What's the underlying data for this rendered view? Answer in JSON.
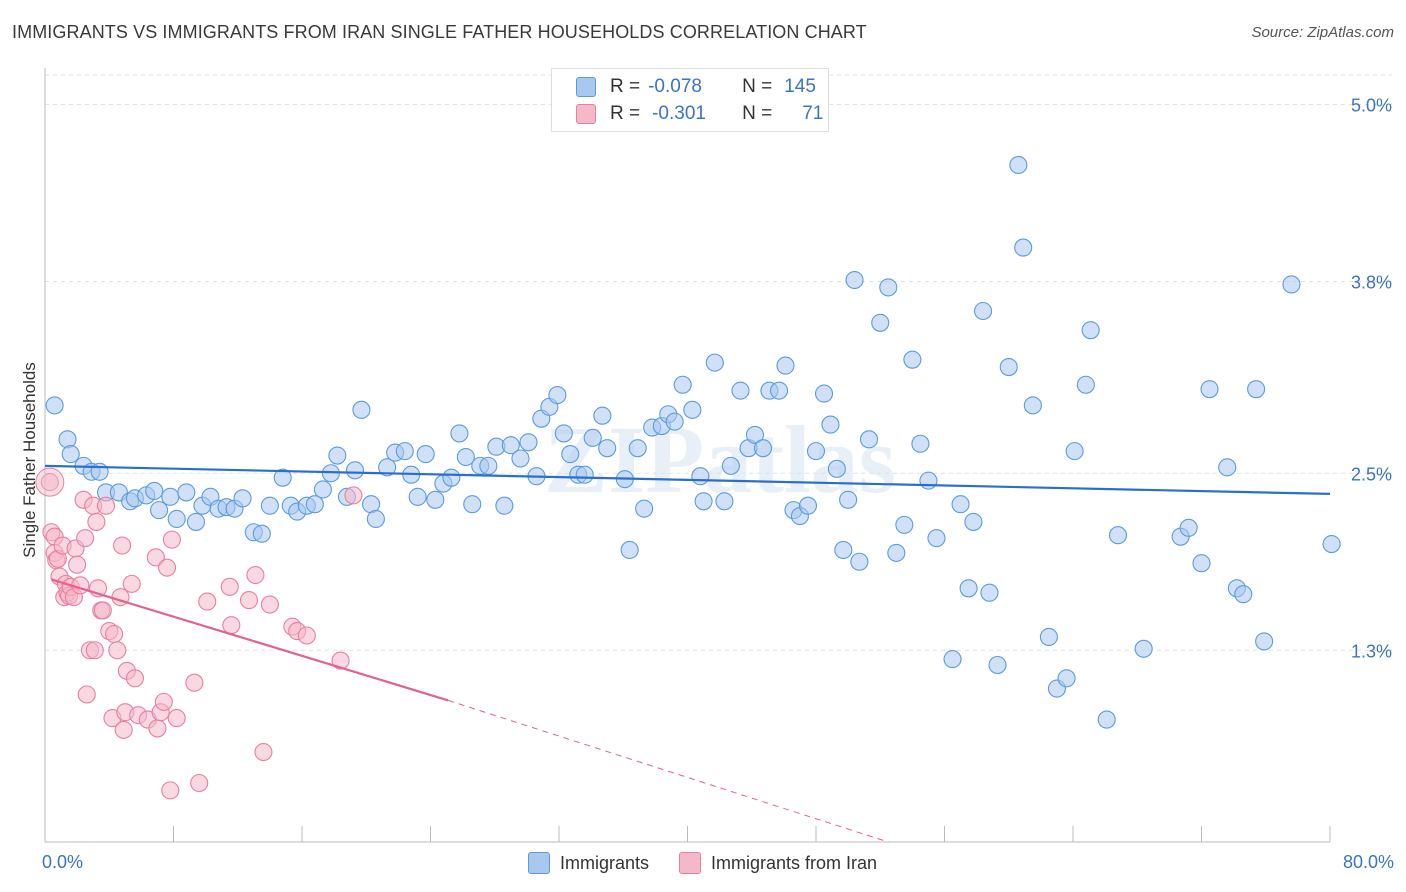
{
  "title": "IMMIGRANTS VS IMMIGRANTS FROM IRAN SINGLE FATHER HOUSEHOLDS CORRELATION CHART",
  "source": "Source: ZipAtlas.com",
  "watermark": "ZIPatlas",
  "legend": {
    "rows": [
      {
        "r_label": "R =",
        "r_value": "-0.078",
        "n_label": "N =",
        "n_value": "145",
        "color": "#a9c8f0"
      },
      {
        "r_label": "R =",
        "r_value": "-0.301",
        "n_label": "N =",
        "n_value": "71",
        "color": "#f5b8c9"
      }
    ]
  },
  "bottom_legend": [
    {
      "label": "Immigrants",
      "color": "#a9c8f0"
    },
    {
      "label": "Immigrants from Iran",
      "color": "#f5b8c9"
    }
  ],
  "chart_data": {
    "type": "scatter",
    "title": "IMMIGRANTS VS IMMIGRANTS FROM IRAN SINGLE FATHER HOUSEHOLDS CORRELATION CHART",
    "xlabel": "",
    "ylabel": "Single Father Households",
    "xlim": [
      0,
      80
    ],
    "ylim": [
      0,
      5.2
    ],
    "x_tick_labels": [
      "0.0%",
      "80.0%"
    ],
    "y_ticks": [
      1.3,
      2.5,
      3.8,
      5.0
    ],
    "y_tick_labels": [
      "1.3%",
      "2.5%",
      "3.8%",
      "5.0%"
    ],
    "grid": true,
    "series": [
      {
        "name": "Immigrants",
        "color": "#5b9be0",
        "fill": "#a9c8f0",
        "trend": {
          "x0": 0,
          "y0": 2.55,
          "x1": 80,
          "y1": 2.36,
          "color": "#2a6fcf"
        },
        "points": [
          [
            0.6,
            2.96
          ],
          [
            1.4,
            2.73
          ],
          [
            1.6,
            2.63
          ],
          [
            2.4,
            2.55
          ],
          [
            2.9,
            2.51
          ],
          [
            3.4,
            2.51
          ],
          [
            3.8,
            2.37
          ],
          [
            4.6,
            2.37
          ],
          [
            5.3,
            2.31
          ],
          [
            5.6,
            2.33
          ],
          [
            6.3,
            2.35
          ],
          [
            6.8,
            2.38
          ],
          [
            7.1,
            2.25
          ],
          [
            7.8,
            2.34
          ],
          [
            8.2,
            2.19
          ],
          [
            8.8,
            2.37
          ],
          [
            9.4,
            2.17
          ],
          [
            9.8,
            2.28
          ],
          [
            10.3,
            2.34
          ],
          [
            10.8,
            2.26
          ],
          [
            11.3,
            2.27
          ],
          [
            11.8,
            2.26
          ],
          [
            12.3,
            2.33
          ],
          [
            13.0,
            2.1
          ],
          [
            13.5,
            2.09
          ],
          [
            14.0,
            2.28
          ],
          [
            14.8,
            2.47
          ],
          [
            15.3,
            2.28
          ],
          [
            15.7,
            2.24
          ],
          [
            16.3,
            2.28
          ],
          [
            16.8,
            2.29
          ],
          [
            17.3,
            2.39
          ],
          [
            17.8,
            2.5
          ],
          [
            18.2,
            2.62
          ],
          [
            18.8,
            2.34
          ],
          [
            19.3,
            2.52
          ],
          [
            19.7,
            2.93
          ],
          [
            20.3,
            2.29
          ],
          [
            20.6,
            2.19
          ],
          [
            21.3,
            2.54
          ],
          [
            21.8,
            2.64
          ],
          [
            22.4,
            2.65
          ],
          [
            22.8,
            2.49
          ],
          [
            23.2,
            2.34
          ],
          [
            23.7,
            2.63
          ],
          [
            24.3,
            2.32
          ],
          [
            24.8,
            2.43
          ],
          [
            25.3,
            2.47
          ],
          [
            25.8,
            2.77
          ],
          [
            26.2,
            2.61
          ],
          [
            26.6,
            2.29
          ],
          [
            27.1,
            2.55
          ],
          [
            27.6,
            2.55
          ],
          [
            28.1,
            2.68
          ],
          [
            28.6,
            2.28
          ],
          [
            29.0,
            2.69
          ],
          [
            29.6,
            2.6
          ],
          [
            30.1,
            2.71
          ],
          [
            30.6,
            2.48
          ],
          [
            30.9,
            2.87
          ],
          [
            31.4,
            2.95
          ],
          [
            31.9,
            3.03
          ],
          [
            32.3,
            2.77
          ],
          [
            32.7,
            2.63
          ],
          [
            33.2,
            2.49
          ],
          [
            33.6,
            2.49
          ],
          [
            34.1,
            2.74
          ],
          [
            34.7,
            2.89
          ],
          [
            35.0,
            2.67
          ],
          [
            36.1,
            2.46
          ],
          [
            36.4,
            1.98
          ],
          [
            36.9,
            2.67
          ],
          [
            37.3,
            2.26
          ],
          [
            37.8,
            2.81
          ],
          [
            38.4,
            2.82
          ],
          [
            38.8,
            2.9
          ],
          [
            39.2,
            2.85
          ],
          [
            39.7,
            3.1
          ],
          [
            40.3,
            2.93
          ],
          [
            40.8,
            2.48
          ],
          [
            41.0,
            2.31
          ],
          [
            41.7,
            3.25
          ],
          [
            42.3,
            2.31
          ],
          [
            42.7,
            2.55
          ],
          [
            43.3,
            3.06
          ],
          [
            43.8,
            2.67
          ],
          [
            44.2,
            2.76
          ],
          [
            44.7,
            2.67
          ],
          [
            45.1,
            3.06
          ],
          [
            45.7,
            3.06
          ],
          [
            46.1,
            3.23
          ],
          [
            46.6,
            2.25
          ],
          [
            47.0,
            2.21
          ],
          [
            47.5,
            2.28
          ],
          [
            48.0,
            2.65
          ],
          [
            48.5,
            3.04
          ],
          [
            48.9,
            2.83
          ],
          [
            49.3,
            2.53
          ],
          [
            49.7,
            1.98
          ],
          [
            50.0,
            2.32
          ],
          [
            50.4,
            3.81
          ],
          [
            50.7,
            1.9
          ],
          [
            51.3,
            2.73
          ],
          [
            52.0,
            3.52
          ],
          [
            52.5,
            3.76
          ],
          [
            53.0,
            1.96
          ],
          [
            53.5,
            2.15
          ],
          [
            54.0,
            3.27
          ],
          [
            54.5,
            2.7
          ],
          [
            55.0,
            2.45
          ],
          [
            55.5,
            2.06
          ],
          [
            56.5,
            1.24
          ],
          [
            57.0,
            2.29
          ],
          [
            57.5,
            1.72
          ],
          [
            57.8,
            2.17
          ],
          [
            58.4,
            3.6
          ],
          [
            58.8,
            1.69
          ],
          [
            59.3,
            1.2
          ],
          [
            60.0,
            3.22
          ],
          [
            60.6,
            4.59
          ],
          [
            60.9,
            4.03
          ],
          [
            61.5,
            2.96
          ],
          [
            62.5,
            1.39
          ],
          [
            63.0,
            1.04
          ],
          [
            63.6,
            1.11
          ],
          [
            64.1,
            2.65
          ],
          [
            64.8,
            3.1
          ],
          [
            65.1,
            3.47
          ],
          [
            66.1,
            0.83
          ],
          [
            66.8,
            2.08
          ],
          [
            68.4,
            1.31
          ],
          [
            70.7,
            2.07
          ],
          [
            71.2,
            2.13
          ],
          [
            72.0,
            1.89
          ],
          [
            72.5,
            3.07
          ],
          [
            73.6,
            2.54
          ],
          [
            74.2,
            1.72
          ],
          [
            74.6,
            1.68
          ],
          [
            75.4,
            3.07
          ],
          [
            75.9,
            1.36
          ],
          [
            77.6,
            3.78
          ],
          [
            80.1,
            2.02
          ]
        ]
      },
      {
        "name": "Immigrants from Iran",
        "color": "#e97fa0",
        "fill": "#f5b8c9",
        "trend": {
          "x0": 0.4,
          "y0": 1.78,
          "x1": 25.1,
          "y1": 0.96,
          "color": "#e4628c",
          "dash_to": {
            "x": 52.5,
            "y": 0.0
          }
        },
        "points": [
          [
            0.3,
            2.44
          ],
          [
            0.4,
            2.1
          ],
          [
            0.6,
            2.07
          ],
          [
            0.6,
            1.96
          ],
          [
            0.7,
            1.91
          ],
          [
            0.8,
            1.92
          ],
          [
            0.9,
            1.8
          ],
          [
            1.1,
            2.01
          ],
          [
            1.2,
            1.66
          ],
          [
            1.3,
            1.75
          ],
          [
            1.4,
            1.69
          ],
          [
            1.5,
            1.67
          ],
          [
            1.6,
            1.73
          ],
          [
            1.8,
            1.66
          ],
          [
            1.9,
            1.99
          ],
          [
            2.0,
            1.88
          ],
          [
            2.2,
            1.74
          ],
          [
            2.4,
            2.32
          ],
          [
            2.5,
            2.06
          ],
          [
            2.6,
            1.0
          ],
          [
            2.8,
            1.3
          ],
          [
            3.0,
            2.28
          ],
          [
            3.1,
            1.3
          ],
          [
            3.2,
            2.17
          ],
          [
            3.3,
            1.72
          ],
          [
            3.5,
            1.57
          ],
          [
            3.6,
            1.57
          ],
          [
            3.8,
            2.28
          ],
          [
            4.0,
            1.43
          ],
          [
            4.2,
            0.84
          ],
          [
            4.3,
            1.41
          ],
          [
            4.5,
            1.3
          ],
          [
            4.7,
            1.66
          ],
          [
            4.8,
            2.01
          ],
          [
            4.9,
            0.76
          ],
          [
            5.0,
            0.88
          ],
          [
            5.1,
            1.16
          ],
          [
            5.4,
            1.75
          ],
          [
            5.6,
            1.11
          ],
          [
            5.8,
            0.86
          ],
          [
            6.4,
            0.83
          ],
          [
            6.9,
            1.93
          ],
          [
            7.0,
            0.77
          ],
          [
            7.2,
            0.88
          ],
          [
            7.4,
            0.95
          ],
          [
            7.6,
            1.86
          ],
          [
            7.8,
            0.35
          ],
          [
            7.9,
            2.05
          ],
          [
            8.2,
            0.84
          ],
          [
            9.3,
            1.08
          ],
          [
            9.6,
            0.4
          ],
          [
            10.1,
            1.63
          ],
          [
            11.5,
            1.73
          ],
          [
            11.6,
            1.47
          ],
          [
            12.7,
            1.64
          ],
          [
            13.1,
            1.81
          ],
          [
            13.6,
            0.61
          ],
          [
            14.0,
            1.61
          ],
          [
            15.4,
            1.46
          ],
          [
            15.7,
            1.43
          ],
          [
            16.3,
            1.4
          ],
          [
            18.4,
            1.23
          ],
          [
            19.2,
            2.35
          ]
        ]
      }
    ]
  }
}
